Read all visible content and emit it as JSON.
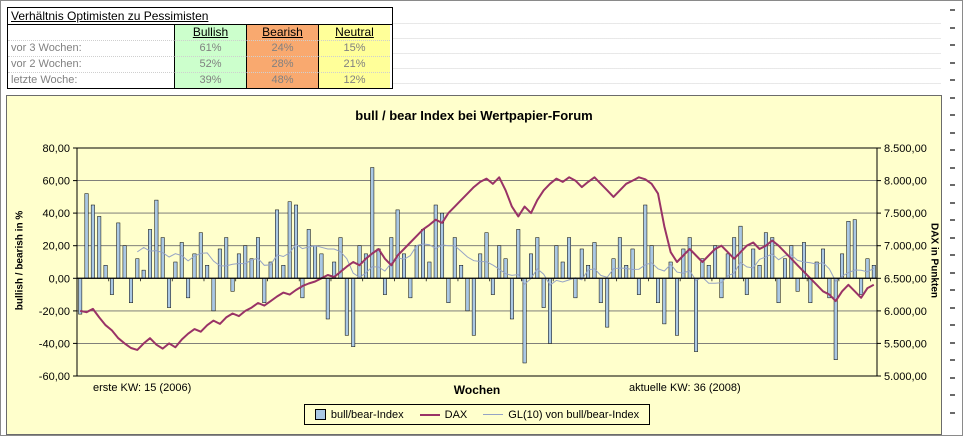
{
  "ratio_table": {
    "title": "Verhältnis Optimisten zu Pessimisten",
    "columns": [
      "Bullish",
      "Bearish",
      "Neutral"
    ],
    "rows": [
      {
        "label": "vor 3 Wochen:",
        "values": [
          "61%",
          "24%",
          "15%"
        ]
      },
      {
        "label": "vor 2 Wochen:",
        "values": [
          "52%",
          "28%",
          "21%"
        ]
      },
      {
        "label": "letzte Woche:",
        "values": [
          "39%",
          "48%",
          "12%"
        ]
      }
    ],
    "colors": {
      "bullish_bg": "#ccffcc",
      "bearish_bg": "#f9a96f",
      "neutral_bg": "#ffff99"
    }
  },
  "sheet_marks": {
    "count": 24
  },
  "chart_data": {
    "type": "bar+line combo",
    "title": "bull / bear Index bei Wertpapier-Forum",
    "xlabel": "Wochen",
    "ylabel_left": "bullish / bearish in %",
    "ylabel_right": "DAX in Punkten",
    "footnote_left": "erste KW: 15 (2006)",
    "footnote_right": "aktuelle KW: 36 (2008)",
    "x_axis": {
      "first_week": "KW 15 (2006)",
      "last_week": "KW 36 (2008)",
      "n_points": 126,
      "tick_labels_visible": false
    },
    "ylim_left": [
      -60,
      80
    ],
    "ylim_right": [
      5000,
      8500
    ],
    "y_left_ticks": [
      "80,00",
      "60,00",
      "40,00",
      "20,00",
      "0,00",
      "-20,00",
      "-40,00",
      "-60,00"
    ],
    "y_right_ticks": [
      "8.500,00",
      "8.000,00",
      "7.500,00",
      "7.000,00",
      "6.500,00",
      "6.000,00",
      "5.500,00",
      "5.000,00"
    ],
    "grid": true,
    "legend_position": "bottom-center",
    "colors": {
      "background": "#ffffcc",
      "bar_fill": "#aac8e4",
      "bar_stroke": "#000000",
      "dax_line": "#993366",
      "gl_line": "#95a3c5",
      "gridline": "#6e6e6e"
    },
    "legend": [
      {
        "label": "bull/bear-Index",
        "swatch": "bar"
      },
      {
        "label": "DAX",
        "swatch": "thick-line"
      },
      {
        "label": "GL(10) von bull/bear-Index",
        "swatch": "thin-line"
      }
    ],
    "series": [
      {
        "name": "bull/bear-Index",
        "type": "bar",
        "axis": "left",
        "unit": "%",
        "values": [
          -22,
          52,
          45,
          38,
          8,
          -10,
          34,
          20,
          -15,
          12,
          5,
          30,
          48,
          25,
          -18,
          10,
          22,
          -12,
          15,
          28,
          8,
          -20,
          18,
          25,
          -8,
          15,
          20,
          12,
          25,
          -15,
          10,
          42,
          8,
          47,
          45,
          -12,
          30,
          20,
          15,
          -25,
          10,
          25,
          -35,
          -42,
          20,
          15,
          68,
          18,
          -10,
          25,
          42,
          15,
          -12,
          20,
          30,
          10,
          45,
          40,
          -15,
          25,
          8,
          -20,
          -35,
          15,
          28,
          -10,
          20,
          12,
          -25,
          30,
          -52,
          15,
          25,
          -18,
          -40,
          20,
          10,
          25,
          -12,
          18,
          8,
          22,
          -15,
          -30,
          12,
          25,
          8,
          18,
          -10,
          45,
          20,
          -15,
          -28,
          10,
          -35,
          18,
          25,
          -45,
          12,
          8,
          20,
          -12,
          15,
          25,
          32,
          -10,
          18,
          8,
          28,
          25,
          -15,
          12,
          20,
          -8,
          22,
          -15,
          10,
          18,
          -12,
          -50,
          15,
          35,
          36,
          -10,
          12,
          8
        ]
      },
      {
        "name": "DAX",
        "type": "line",
        "axis": "right",
        "unit": "Punkte",
        "values": [
          6000,
          5980,
          6030,
          5900,
          5780,
          5700,
          5580,
          5500,
          5430,
          5400,
          5500,
          5580,
          5480,
          5420,
          5500,
          5440,
          5560,
          5650,
          5720,
          5680,
          5780,
          5850,
          5800,
          5900,
          5960,
          5920,
          6000,
          6050,
          6120,
          6080,
          6150,
          6220,
          6280,
          6250,
          6320,
          6380,
          6420,
          6450,
          6500,
          6550,
          6520,
          6600,
          6680,
          6750,
          6700,
          6800,
          6880,
          6950,
          6800,
          6700,
          6850,
          6950,
          7050,
          7150,
          7250,
          7320,
          7400,
          7350,
          7500,
          7600,
          7700,
          7800,
          7900,
          7980,
          8030,
          7950,
          8050,
          7850,
          7600,
          7450,
          7600,
          7500,
          7700,
          7850,
          7950,
          8030,
          7980,
          8050,
          8000,
          7900,
          7980,
          8050,
          7950,
          7850,
          7750,
          7850,
          7950,
          8000,
          8050,
          8020,
          7950,
          7800,
          7300,
          6900,
          6750,
          6850,
          6950,
          6850,
          6750,
          6850,
          6950,
          7000,
          6900,
          6800,
          6900,
          7000,
          7050,
          6950,
          7000,
          7080,
          7000,
          6900,
          6800,
          6700,
          6600,
          6500,
          6400,
          6300,
          6250,
          6150,
          6300,
          6400,
          6300,
          6200,
          6350,
          6400
        ]
      },
      {
        "name": "GL(10) von bull/bear-Index",
        "type": "line",
        "axis": "left",
        "derived_from": "10-Wochen gleitender Durchschnitt der bull/bear-Index-Werte"
      }
    ]
  }
}
